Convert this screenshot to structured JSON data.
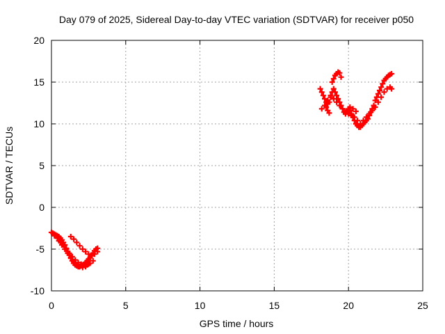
{
  "chart_data": {
    "type": "scatter",
    "title": "Day 079 of 2025, Sidereal Day-to-day VTEC variation (SDTVAR) for receiver p050",
    "xlabel": "GPS time / hours",
    "ylabel": "SDTVAR / TECUs",
    "xlim": [
      0,
      25
    ],
    "ylim": [
      -10,
      20
    ],
    "x_ticks": [
      "0",
      "5",
      "10",
      "15",
      "20",
      "25"
    ],
    "y_ticks": [
      "-10",
      "-5",
      "0",
      "5",
      "10",
      "15",
      "20"
    ],
    "grid": true,
    "marker": "plus",
    "marker_color": "#ff0000",
    "series": [
      {
        "x": [
          0.0,
          0.1,
          0.2,
          0.3,
          0.4,
          0.5,
          0.6,
          0.7,
          0.8,
          0.9,
          1.0,
          1.1,
          1.2,
          1.3,
          1.4,
          1.5,
          1.6,
          1.7,
          1.8,
          1.9,
          2.0,
          2.1,
          2.2,
          2.3,
          2.4,
          2.5,
          2.6,
          2.7,
          2.8,
          2.9,
          3.0,
          3.1,
          0.2,
          0.4,
          0.6,
          0.8,
          1.0,
          1.2,
          1.4,
          1.6,
          1.8,
          2.0,
          2.2,
          2.4,
          2.6,
          2.8,
          1.3,
          1.5,
          1.7,
          1.9,
          2.1,
          2.3,
          2.5,
          2.7,
          2.9,
          3.1,
          0.5,
          0.7,
          0.9,
          1.1,
          1.3,
          1.5,
          1.7,
          1.9,
          2.1,
          2.3,
          2.5
        ],
        "y": [
          -3.0,
          -3.1,
          -3.2,
          -3.3,
          -3.4,
          -3.5,
          -3.7,
          -3.9,
          -4.2,
          -4.5,
          -4.9,
          -5.3,
          -5.7,
          -6.1,
          -6.4,
          -6.7,
          -6.9,
          -7.0,
          -7.1,
          -7.1,
          -7.0,
          -6.9,
          -6.8,
          -6.6,
          -6.4,
          -6.2,
          -6.0,
          -5.8,
          -5.5,
          -5.2,
          -5.0,
          -4.9,
          -3.4,
          -3.7,
          -4.1,
          -4.5,
          -5.0,
          -5.5,
          -5.9,
          -6.3,
          -6.6,
          -6.8,
          -6.9,
          -6.9,
          -6.7,
          -6.4,
          -3.5,
          -3.8,
          -4.2,
          -4.6,
          -5.0,
          -5.3,
          -5.6,
          -5.7,
          -5.6,
          -5.3,
          -4.0,
          -4.5,
          -5.0,
          -5.5,
          -6.0,
          -6.5,
          -6.9,
          -7.1,
          -7.2,
          -7.1,
          -6.8
        ]
      },
      {
        "x": [
          18.1,
          18.2,
          18.3,
          18.4,
          18.5,
          18.6,
          18.7,
          18.8,
          18.9,
          19.0,
          19.1,
          19.2,
          19.3,
          19.4,
          19.5,
          19.6,
          19.7,
          19.8,
          19.9,
          20.0,
          20.1,
          20.2,
          20.3,
          20.4,
          20.5,
          20.6,
          20.7,
          20.8,
          20.9,
          21.0,
          21.1,
          21.2,
          21.3,
          21.4,
          21.5,
          21.6,
          21.7,
          21.8,
          21.9,
          22.0,
          22.1,
          22.2,
          22.3,
          22.4,
          22.5,
          22.6,
          22.7,
          22.8,
          22.9,
          18.2,
          18.4,
          18.6,
          18.8,
          19.0,
          19.2,
          19.4,
          19.6,
          19.8,
          20.0,
          20.2,
          20.4,
          20.6,
          20.8,
          21.0,
          21.2,
          21.4,
          21.6,
          21.8,
          22.0,
          22.2,
          22.4,
          22.6,
          22.8,
          18.9,
          19.0,
          19.1,
          19.2,
          19.3,
          19.4,
          19.5,
          18.5,
          18.6,
          18.7,
          20.1,
          20.3,
          20.5,
          22.9
        ],
        "y": [
          14.2,
          13.8,
          13.4,
          13.0,
          12.6,
          12.4,
          12.6,
          13.2,
          13.8,
          14.2,
          13.8,
          13.4,
          13.0,
          12.6,
          12.2,
          11.8,
          11.4,
          11.2,
          11.4,
          11.8,
          11.6,
          11.2,
          10.8,
          10.4,
          10.0,
          9.8,
          9.6,
          9.6,
          9.8,
          10.0,
          10.2,
          10.4,
          10.6,
          11.0,
          11.4,
          11.8,
          12.2,
          12.8,
          13.2,
          13.6,
          14.0,
          14.4,
          14.8,
          15.2,
          15.4,
          15.6,
          15.8,
          15.9,
          16.0,
          11.8,
          12.2,
          12.8,
          13.4,
          13.0,
          12.6,
          12.2,
          11.8,
          11.4,
          11.2,
          11.0,
          10.8,
          10.4,
          10.0,
          10.4,
          10.8,
          11.2,
          11.6,
          12.0,
          12.6,
          13.2,
          13.8,
          14.2,
          14.4,
          15.0,
          15.4,
          15.8,
          16.0,
          16.2,
          16.1,
          15.6,
          12.0,
          11.6,
          11.3,
          12.0,
          11.8,
          11.5,
          14.2
        ]
      }
    ]
  }
}
